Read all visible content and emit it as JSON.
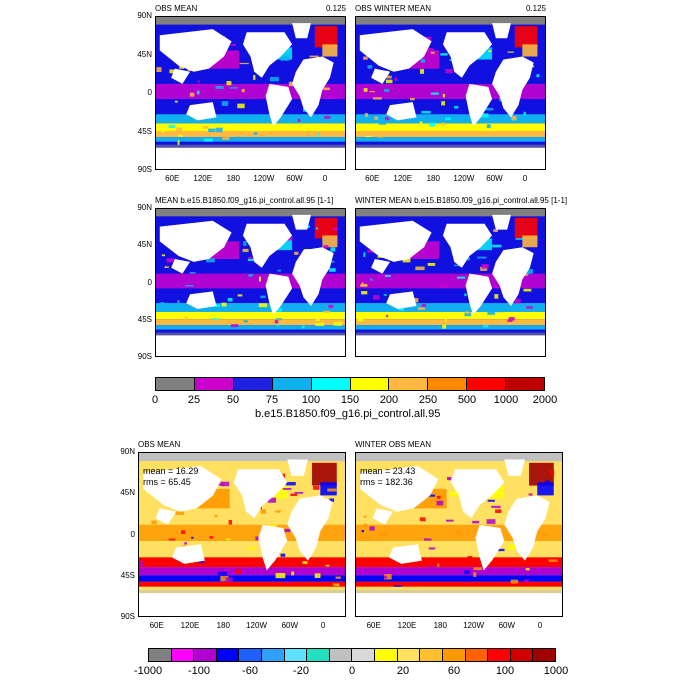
{
  "panels": [
    {
      "title_left": "OBS MEAN",
      "title_right": "0.125",
      "palette": "a",
      "lat_labels": [
        "90N",
        "45N",
        "0",
        "45S",
        "90S"
      ],
      "lon_labels": [
        "60E",
        "120E",
        "180",
        "120W",
        "60W",
        "0"
      ]
    },
    {
      "title_left": "OBS WINTER MEAN",
      "title_right": "0.125",
      "palette": "a",
      "lat_labels": [],
      "lon_labels": [
        "60E",
        "120E",
        "180",
        "120W",
        "60W",
        "0"
      ]
    },
    {
      "title_left": "MEAN b.e15.B1850.f09_g16.pi_control.all.95 [1-1]",
      "title_right": "",
      "palette": "a",
      "lat_labels": [
        "90N",
        "45N",
        "0",
        "45S",
        "90S"
      ],
      "lon_labels": []
    },
    {
      "title_left": "WINTER MEAN b.e15.B1850.f09_g16.pi_control.all.95 [1-1]",
      "title_right": "",
      "palette": "a",
      "lat_labels": [],
      "lon_labels": []
    },
    {
      "title_left": "OBS MEAN",
      "title_right": "",
      "palette": "b",
      "lat_labels": [
        "90N",
        "45N",
        "0",
        "45S",
        "90S"
      ],
      "lon_labels": [
        "60E",
        "120E",
        "180",
        "120W",
        "60W",
        "0"
      ],
      "stats": [
        "mean = 16.29",
        "rms = 65.45"
      ]
    },
    {
      "title_left": "WINTER OBS MEAN",
      "title_right": "",
      "palette": "b",
      "lat_labels": [],
      "lon_labels": [
        "60E",
        "120E",
        "180",
        "120W",
        "60W",
        "0"
      ],
      "stats": [
        "mean = 23.43",
        "rms = 182.36"
      ]
    }
  ],
  "colorbar_top": {
    "colors": [
      "#808080",
      "#cc00cc",
      "#2020e0",
      "#10b0f0",
      "#00ffff",
      "#ffff00",
      "#ffb840",
      "#ff8800",
      "#ff0000",
      "#c00000"
    ],
    "labels": [
      "0",
      "25",
      "50",
      "75",
      "100",
      "150",
      "200",
      "250",
      "500",
      "1000",
      "2000"
    ],
    "title": "b.e15.B1850.f09_g16.pi_control.all.95"
  },
  "colorbar_bottom": {
    "colors": [
      "#808080",
      "#ff00ff",
      "#b000d0",
      "#0000ff",
      "#2060ff",
      "#30a0ff",
      "#60e0ff",
      "#20e0c0",
      "#c0c0c0",
      "#d8d8d8",
      "#ffff00",
      "#ffe060",
      "#ffc030",
      "#ff9900",
      "#ff6000",
      "#ff0000",
      "#d00000",
      "#a00000"
    ],
    "labels": [
      "-1000",
      "-100",
      "-60",
      "-20",
      "0",
      "20",
      "60",
      "100",
      "1000"
    ]
  },
  "palettes": {
    "a": {
      "ocean": "#1010e0",
      "land": "#ffffff",
      "ice": "#808080",
      "band1": "#cc00cc",
      "band2": "#10b0f0",
      "band3": "#ffff00",
      "band4": "#ffb840",
      "band5": "#ff0000",
      "band6": "#00ffff"
    },
    "b": {
      "ocean": "#ffe060",
      "land": "#ffffff",
      "ice": "#c0c0c0",
      "band1": "#ff9900",
      "band2": "#ff0000",
      "band3": "#b000d0",
      "band4": "#0000ff",
      "band5": "#a00000",
      "band6": "#ffff00"
    }
  }
}
